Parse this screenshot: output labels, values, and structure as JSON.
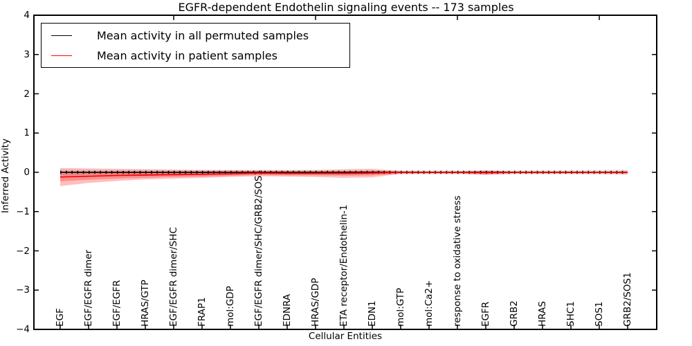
{
  "chart_data": {
    "type": "line",
    "title": "EGFR-dependent Endothelin signaling events -- 173 samples",
    "xlabel": "Cellular Entities",
    "ylabel": "Inferred Activity",
    "ylim": [
      -4,
      4
    ],
    "yticks": [
      4,
      3,
      2,
      1,
      0,
      -1,
      -2,
      -3,
      -4
    ],
    "ytick_labels": [
      "4",
      "3",
      "2",
      "1",
      "0",
      "−1",
      "−2",
      "−3",
      "−4"
    ],
    "grid": false,
    "legend_position": "upper left",
    "sample_count": "173 samples",
    "categories": [
      "EGF",
      "EGF/EGFR dimer",
      "EGF/EGFR",
      "HRAS/GTP",
      "EGF/EGFR dimer/SHC",
      "FRAP1",
      "mol:GDP",
      "EGF/EGFR dimer/SHC/GRB2/SOS1",
      "EDNRA",
      "HRAS/GDP",
      "ETA receptor/Endothelin-1",
      "EDN1",
      "mol:GTP",
      "mol:Ca2+",
      "response to oxidative stress",
      "EGFR",
      "GRB2",
      "HRAS",
      "SHC1",
      "SOS1",
      "GRB2/SOS1"
    ],
    "top_tick_category_indices": [
      4,
      9,
      14,
      19
    ],
    "series": [
      {
        "name": "Mean activity in all permuted samples",
        "color": "#000000",
        "markers": "tick",
        "values": [
          0,
          0,
          0,
          0,
          0,
          0,
          0,
          0,
          0,
          0,
          0,
          0,
          0,
          0,
          0,
          0,
          0,
          0,
          0,
          0,
          0
        ]
      },
      {
        "name": "Mean activity in patient samples",
        "color": "#ff0000",
        "markers": "none",
        "values": [
          -0.12,
          -0.1,
          -0.08,
          -0.07,
          -0.06,
          -0.05,
          -0.04,
          -0.02,
          -0.03,
          -0.03,
          -0.03,
          -0.02,
          0,
          0,
          0,
          -0.01,
          0,
          0,
          0,
          0,
          0
        ]
      }
    ],
    "bands": [
      {
        "name": "permuted-samples-std",
        "color": "rgba(0,0,0,0.10)",
        "upper": [
          0.07,
          0.06,
          0.06,
          0.06,
          0.05,
          0.05,
          0.05,
          0.05,
          0.05,
          0.05,
          0.05,
          0.05,
          0.05,
          0.05,
          0.05,
          0.05,
          0.05,
          0.05,
          0.05,
          0.06,
          0.07
        ],
        "lower": [
          -0.07,
          -0.06,
          -0.06,
          -0.06,
          -0.05,
          -0.05,
          -0.05,
          -0.05,
          -0.05,
          -0.05,
          -0.05,
          -0.05,
          -0.05,
          -0.05,
          -0.05,
          -0.05,
          -0.05,
          -0.05,
          -0.05,
          -0.06,
          -0.07
        ]
      },
      {
        "name": "patient-samples-std-outer",
        "color": "rgba(255,0,0,0.25)",
        "upper": [
          0.11,
          0.1,
          0.09,
          0.08,
          0.07,
          0.06,
          0.06,
          0.06,
          0.06,
          0.06,
          0.08,
          0.09,
          0.03,
          0.02,
          0.02,
          0.05,
          0.02,
          0.02,
          0.02,
          0.02,
          0.03
        ],
        "lower": [
          -0.35,
          -0.27,
          -0.22,
          -0.18,
          -0.16,
          -0.14,
          -0.12,
          -0.1,
          -0.11,
          -0.12,
          -0.14,
          -0.13,
          -0.04,
          -0.03,
          -0.03,
          -0.07,
          -0.03,
          -0.03,
          -0.03,
          -0.03,
          -0.04
        ]
      },
      {
        "name": "patient-samples-std-inner",
        "color": "rgba(255,0,0,0.25)",
        "upper": [
          -0.03,
          -0.02,
          -0.01,
          0.0,
          0.0,
          0.01,
          0.01,
          0.02,
          0.02,
          0.02,
          0.03,
          0.04,
          0.01,
          0.01,
          0.01,
          0.02,
          0.01,
          0.01,
          0.01,
          0.01,
          0.02
        ],
        "lower": [
          -0.23,
          -0.19,
          -0.16,
          -0.14,
          -0.12,
          -0.11,
          -0.09,
          -0.07,
          -0.08,
          -0.08,
          -0.09,
          -0.08,
          -0.02,
          -0.02,
          -0.02,
          -0.04,
          -0.02,
          -0.02,
          -0.02,
          -0.02,
          -0.03
        ]
      }
    ]
  }
}
